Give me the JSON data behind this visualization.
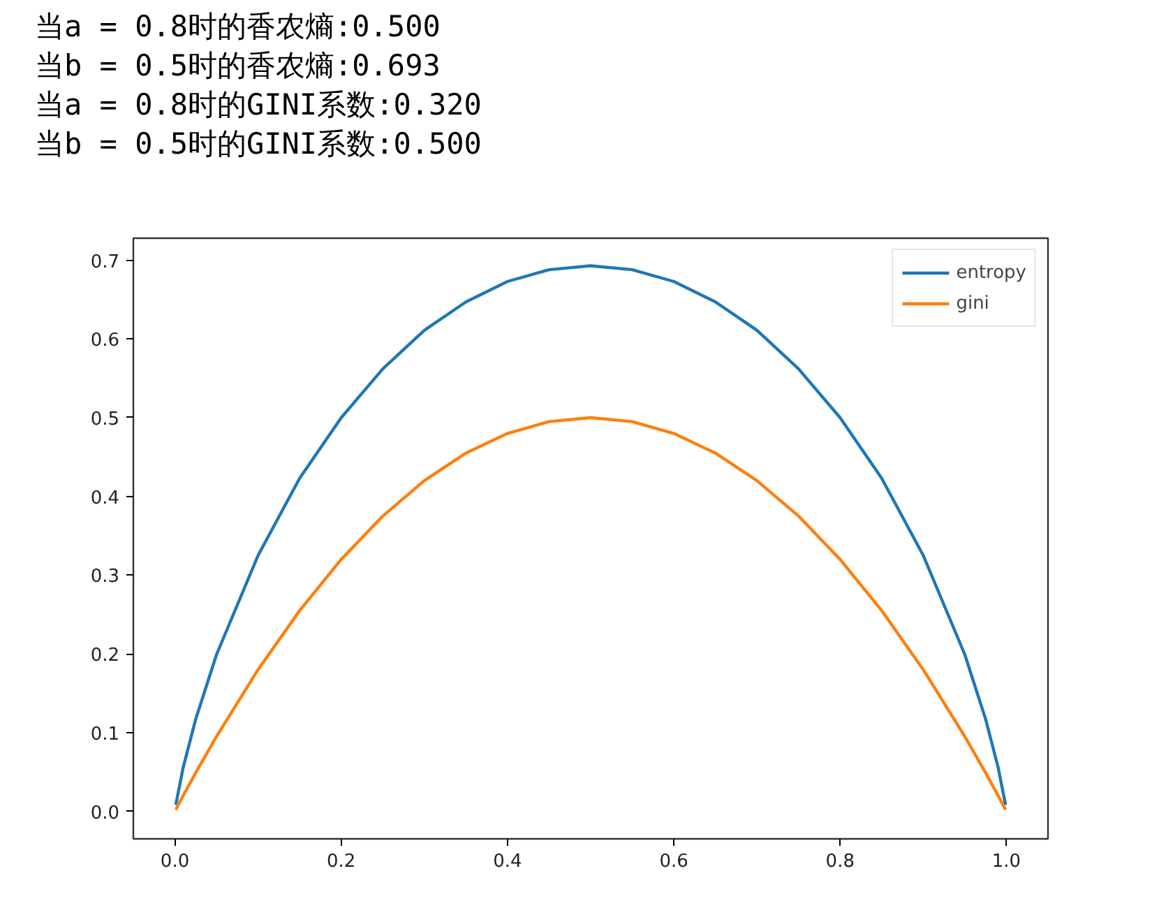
{
  "chart_data": {
    "type": "line",
    "annotations": [
      "当a = 0.8时的香农熵:0.500",
      "当b = 0.5时的香农熵:0.693",
      "当a = 0.8时的GINI系数:0.320",
      "当b = 0.5时的GINI系数:0.500"
    ],
    "x": [
      0.001,
      0.01,
      0.025,
      0.05,
      0.1,
      0.15,
      0.2,
      0.25,
      0.3,
      0.35,
      0.4,
      0.45,
      0.5,
      0.55,
      0.6,
      0.65,
      0.7,
      0.75,
      0.8,
      0.85,
      0.9,
      0.95,
      0.975,
      0.99,
      0.999
    ],
    "series": [
      {
        "name": "entropy",
        "color": "#1f77b4",
        "values": [
          0.008,
          0.056,
          0.117,
          0.199,
          0.325,
          0.423,
          0.5,
          0.562,
          0.611,
          0.647,
          0.673,
          0.688,
          0.693,
          0.688,
          0.673,
          0.647,
          0.611,
          0.562,
          0.5,
          0.423,
          0.325,
          0.199,
          0.117,
          0.056,
          0.008
        ]
      },
      {
        "name": "gini",
        "color": "#ff7f0e",
        "values": [
          0.002,
          0.02,
          0.049,
          0.095,
          0.18,
          0.255,
          0.32,
          0.375,
          0.42,
          0.455,
          0.48,
          0.495,
          0.5,
          0.495,
          0.48,
          0.455,
          0.42,
          0.375,
          0.32,
          0.255,
          0.18,
          0.095,
          0.049,
          0.02,
          0.002
        ]
      }
    ],
    "xlim": [
      -0.05,
      1.05
    ],
    "ylim": [
      -0.035,
      0.728
    ],
    "xticks": [
      {
        "value": 0,
        "label": "0.0"
      },
      {
        "value": 0.2,
        "label": "0.2"
      },
      {
        "value": 0.4,
        "label": "0.4"
      },
      {
        "value": 0.6,
        "label": "0.6"
      },
      {
        "value": 0.8,
        "label": "0.8"
      },
      {
        "value": 1,
        "label": "1.0"
      }
    ],
    "yticks": [
      {
        "value": 0,
        "label": "0.0"
      },
      {
        "value": 0.1,
        "label": "0.1"
      },
      {
        "value": 0.2,
        "label": "0.2"
      },
      {
        "value": 0.3,
        "label": "0.3"
      },
      {
        "value": 0.4,
        "label": "0.4"
      },
      {
        "value": 0.5,
        "label": "0.5"
      },
      {
        "value": 0.6,
        "label": "0.6"
      },
      {
        "value": 0.7,
        "label": "0.7"
      }
    ],
    "legend": "top right",
    "grid": false
  }
}
